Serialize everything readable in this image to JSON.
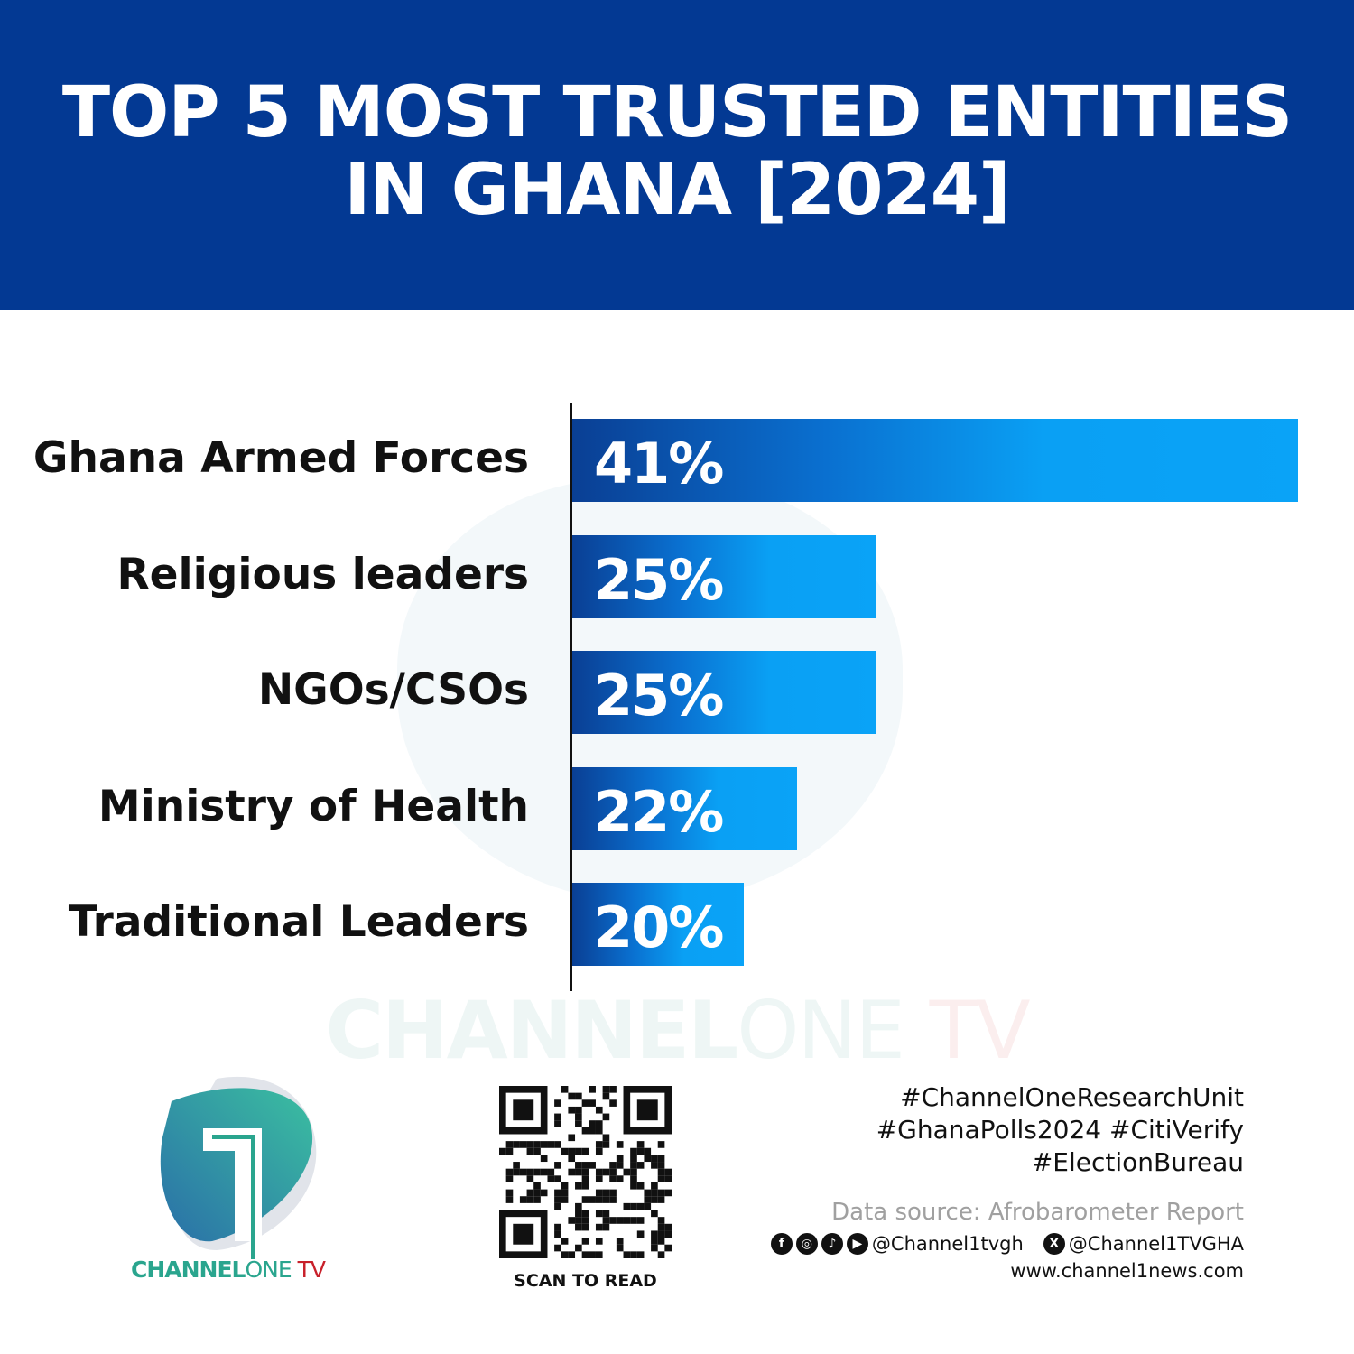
{
  "header": {
    "title_line1": "TOP 5 MOST TRUSTED ENTITIES",
    "title_line2": "IN GHANA [2024]"
  },
  "chart_data": {
    "type": "bar",
    "orientation": "horizontal",
    "title": "TOP 5 MOST TRUSTED ENTITIES IN GHANA [2024]",
    "categories": [
      "Ghana Armed Forces",
      "Religious leaders",
      "NGOs/CSOs",
      "Ministry of Health",
      "Traditional Leaders"
    ],
    "values": [
      41,
      25,
      25,
      22,
      20
    ],
    "data_labels": [
      "41%",
      "25%",
      "25%",
      "22%",
      "20%"
    ],
    "unit": "%",
    "xlim": [
      13.5,
      41
    ],
    "grid": false,
    "colors": {
      "bar_start": "#0a3f94",
      "bar_end": "#0aa3f7"
    }
  },
  "watermark": {
    "part1": "CHANNEL",
    "part2": "ONE",
    "part3": "TV"
  },
  "logo": {
    "part1": "CHANNEL",
    "part2": "ONE",
    "part3": " TV"
  },
  "qr": {
    "caption": "SCAN TO READ"
  },
  "footer": {
    "hashtags": [
      "#ChannelOneResearchUnit",
      "#GhanaPolls2024 #CitiVerify",
      "#ElectionBureau"
    ],
    "source": "Data source: Afrobarometer Report",
    "social_icons": [
      "facebook-icon",
      "instagram-icon",
      "tiktok-icon",
      "youtube-icon"
    ],
    "handle1": "@Channel1tvgh",
    "handle2": "@Channel1TVGHA",
    "website": "www.channel1news.com"
  },
  "colors": {
    "header_bg": "#033993",
    "brand_teal": "#2aa58e",
    "brand_red": "#c8202a"
  }
}
